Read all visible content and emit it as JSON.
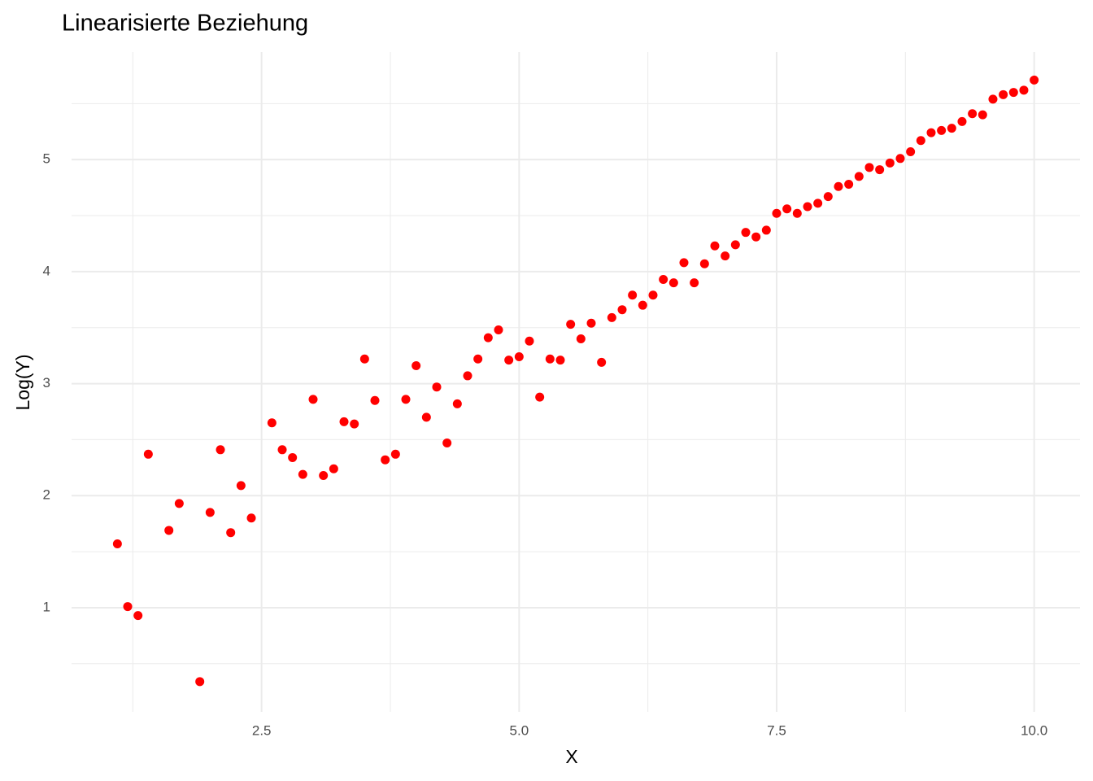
{
  "chart_data": {
    "type": "scatter",
    "title": "Linearisierte Beziehung",
    "x_label": "X",
    "y_label": "Log(Y)",
    "x": [
      1.1,
      1.2,
      1.3,
      1.4,
      1.6,
      1.7,
      1.9,
      2.0,
      2.1,
      2.2,
      2.3,
      2.4,
      2.6,
      2.7,
      2.8,
      2.9,
      3.0,
      3.1,
      3.2,
      3.3,
      3.4,
      3.5,
      3.6,
      3.7,
      3.8,
      3.9,
      4.0,
      4.1,
      4.2,
      4.3,
      4.4,
      4.5,
      4.6,
      4.7,
      4.8,
      4.9,
      5.0,
      5.1,
      5.2,
      5.3,
      5.4,
      5.5,
      5.6,
      5.7,
      5.8,
      5.9,
      6.0,
      6.1,
      6.2,
      6.3,
      6.4,
      6.5,
      6.6,
      6.7,
      6.8,
      6.9,
      7.0,
      7.1,
      7.2,
      7.3,
      7.4,
      7.5,
      7.6,
      7.7,
      7.8,
      7.9,
      8.0,
      8.1,
      8.2,
      8.3,
      8.4,
      8.5,
      8.6,
      8.7,
      8.8,
      8.9,
      9.0,
      9.1,
      9.2,
      9.3,
      9.4,
      9.5,
      9.6,
      9.7,
      9.8,
      9.9,
      10.0
    ],
    "values": [
      1.57,
      1.01,
      0.93,
      2.37,
      1.69,
      1.93,
      0.34,
      1.85,
      2.41,
      1.67,
      2.09,
      1.8,
      2.65,
      2.41,
      2.34,
      2.19,
      2.86,
      2.18,
      2.24,
      2.66,
      2.64,
      3.22,
      2.85,
      2.32,
      2.37,
      2.86,
      3.16,
      2.7,
      2.97,
      2.47,
      2.82,
      3.07,
      3.22,
      3.41,
      3.48,
      3.21,
      3.24,
      3.38,
      2.88,
      3.22,
      3.21,
      3.53,
      3.4,
      3.54,
      3.19,
      3.59,
      3.66,
      3.79,
      3.7,
      3.79,
      3.93,
      3.9,
      4.08,
      3.9,
      4.07,
      4.23,
      4.14,
      4.24,
      4.35,
      4.31,
      4.37,
      4.52,
      4.56,
      4.52,
      4.58,
      4.61,
      4.67,
      4.76,
      4.78,
      4.85,
      4.93,
      4.91,
      4.97,
      5.01,
      5.07,
      5.17,
      5.24,
      5.26,
      5.28,
      5.34,
      5.41,
      5.4,
      5.54,
      5.58,
      5.6,
      5.62,
      5.71
    ],
    "color": "#ff0000",
    "xlim": [
      0.655,
      10.445
    ],
    "ylim": [
      0.07,
      5.96
    ],
    "xticks": [
      2.5,
      {
        "value": 5.0,
        "label": "5.0"
      },
      7.5,
      {
        "value": 10.0,
        "label": "10.0"
      }
    ],
    "yticks": [
      1,
      2,
      3,
      4,
      5
    ],
    "grid": true
  }
}
